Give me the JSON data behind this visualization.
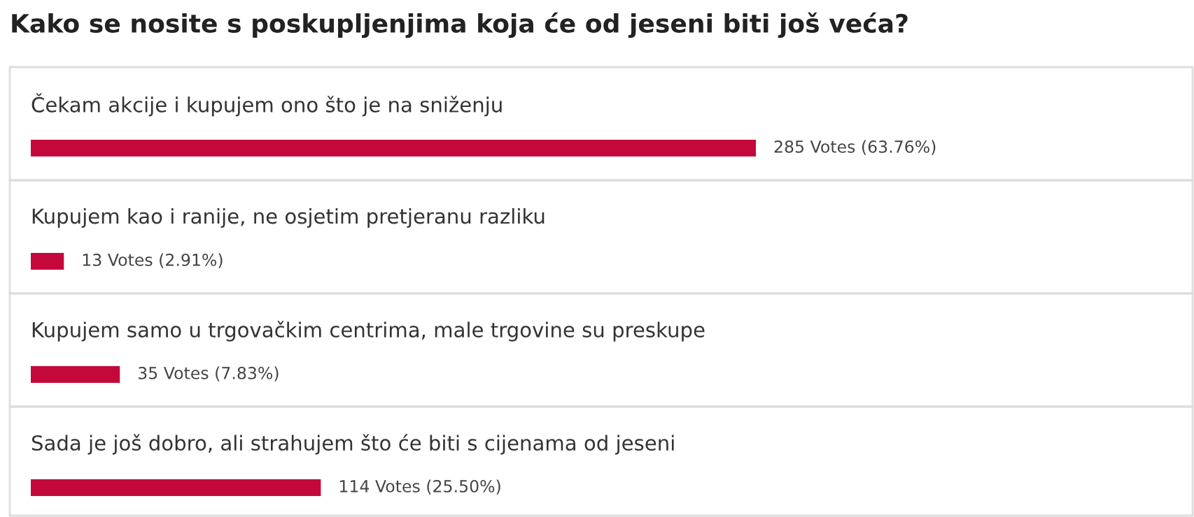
{
  "chart_data": {
    "type": "bar",
    "orientation": "horizontal",
    "title": "Kako se nosite s poskupljenjima koja će od jeseni biti još veća?",
    "categories": [
      "Čekam akcije i kupujem ono što je na sniženju",
      "Kupujem kao i ranije, ne osjetim pretjeranu razliku",
      "Kupujem samo u trgovačkim centrima, male trgovine su preskupe",
      "Sada je još dobro, ali strahujem što će biti s cijenama od jeseni"
    ],
    "values": [
      285,
      13,
      35,
      114
    ],
    "color": "#c4093a",
    "value_labels": [
      "285 Votes (63.76%)",
      "13 Votes (2.91%)",
      "35 Votes (7.83%)",
      "114 Votes (25.50%)"
    ]
  }
}
